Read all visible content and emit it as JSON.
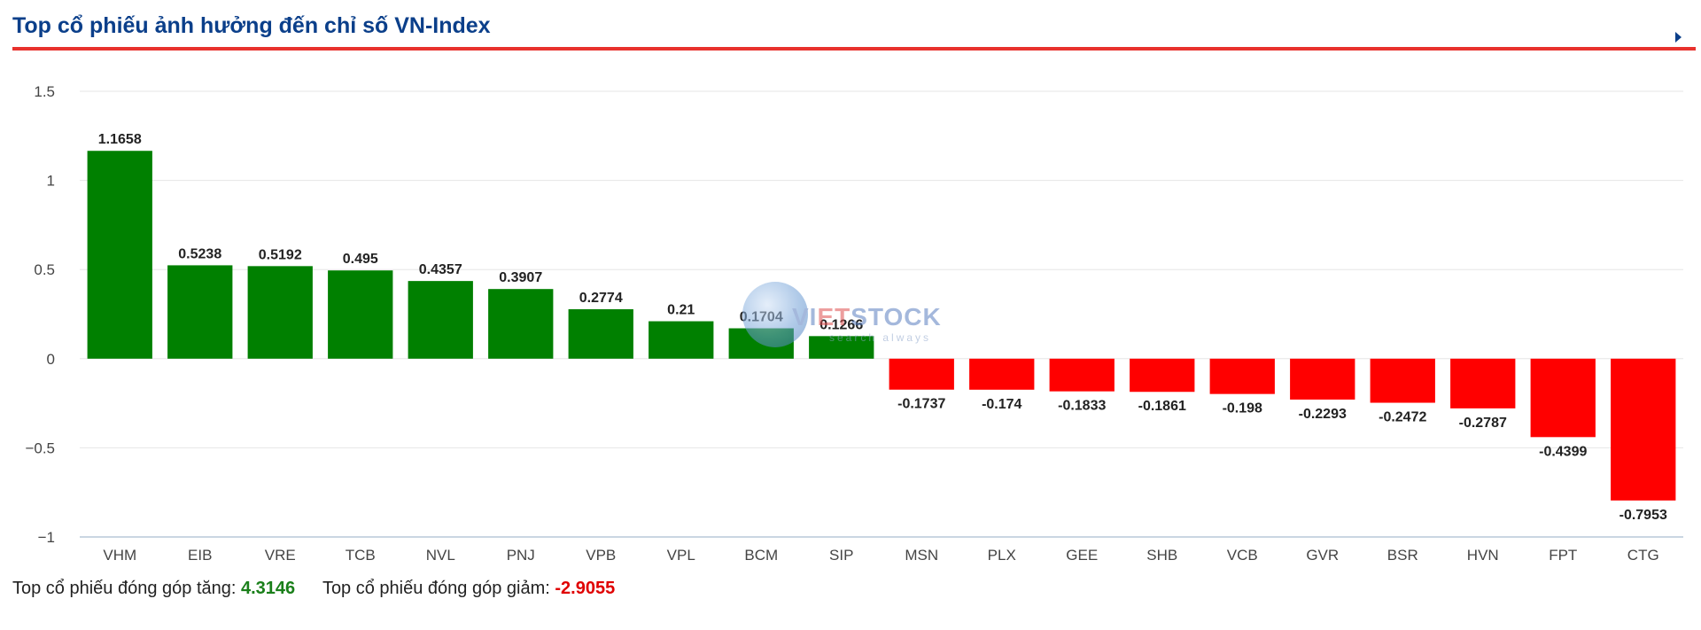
{
  "header": {
    "title": "Top cổ phiếu ảnh hưởng đến chỉ số VN-Index"
  },
  "watermark": {
    "brand_prefix": "VI",
    "brand_accent": "ET",
    "brand_suffix": "STOCK",
    "tagline": "search always"
  },
  "chart_data": {
    "type": "bar",
    "title": "Top cổ phiếu ảnh hưởng đến chỉ số VN-Index",
    "xlabel": "",
    "ylabel": "",
    "ylim": [
      -1,
      1.5
    ],
    "yticks": [
      1.5,
      1,
      0.5,
      0,
      -0.5,
      -1
    ],
    "ytick_labels": [
      "1.5",
      "1",
      "0.5",
      "0",
      "−0.5",
      "−1"
    ],
    "grid": true,
    "legend": "none",
    "categories": [
      "VHM",
      "EIB",
      "VRE",
      "TCB",
      "NVL",
      "PNJ",
      "VPB",
      "VPL",
      "BCM",
      "SIP",
      "MSN",
      "PLX",
      "GEE",
      "SHB",
      "VCB",
      "GVR",
      "BSR",
      "HVN",
      "FPT",
      "CTG"
    ],
    "values": [
      1.1658,
      0.5238,
      0.5192,
      0.495,
      0.4357,
      0.3907,
      0.2774,
      0.21,
      0.1704,
      0.1266,
      -0.1737,
      -0.174,
      -0.1833,
      -0.1861,
      -0.198,
      -0.2293,
      -0.2472,
      -0.2787,
      -0.4399,
      -0.7953
    ],
    "value_labels": [
      "1.1658",
      "0.5238",
      "0.5192",
      "0.495",
      "0.4357",
      "0.3907",
      "0.2774",
      "0.21",
      "0.1704",
      "0.1266",
      "-0.1737",
      "-0.174",
      "-0.1833",
      "-0.1861",
      "-0.198",
      "-0.2293",
      "-0.2472",
      "-0.2787",
      "-0.4399",
      "-0.7953"
    ],
    "colors": {
      "positive": "#008000",
      "negative": "#ff0000"
    }
  },
  "summary": {
    "up_label": "Top cổ phiếu đóng góp tăng:",
    "up_value": "4.3146",
    "down_label": "Top cổ phiếu đóng góp giảm:",
    "down_value": "-2.9055"
  }
}
